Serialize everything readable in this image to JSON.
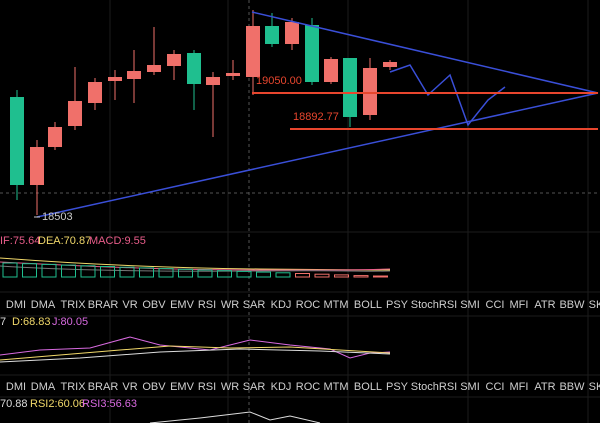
{
  "price_labels": {
    "upper": "19050.00",
    "lower": "18892.77",
    "low": "18503"
  },
  "macd": {
    "dif": "IF:75.64",
    "dea": "DEA:70.87",
    "macd": "MACD:9.55"
  },
  "tabs_1": [
    "DMI",
    "DMA",
    "TRIX",
    "BRAR",
    "VR",
    "OBV",
    "EMV",
    "RSI",
    "WR",
    "SAR",
    "KDJ",
    "ROC",
    "MTM",
    "BOLL",
    "PSY",
    "StochRSI",
    "SMI",
    "CCI",
    "MFI",
    "ATR",
    "BBW",
    "SK"
  ],
  "kdj": {
    "k": "7",
    "d": "D:68.83",
    "j": "J:80.05"
  },
  "tabs_2": [
    "DMI",
    "DMA",
    "TRIX",
    "BRAR",
    "VR",
    "OBV",
    "EMV",
    "RSI",
    "WR",
    "SAR",
    "KDJ",
    "ROC",
    "MTM",
    "BOLL",
    "PSY",
    "StochRSI",
    "SMI",
    "CCI",
    "MFI",
    "ATR",
    "BBW",
    "SK"
  ],
  "rsi": {
    "rsi1": "70.88",
    "rsi2": "RSI2:60.06",
    "rsi3": "RSI3:56.63"
  }
}
